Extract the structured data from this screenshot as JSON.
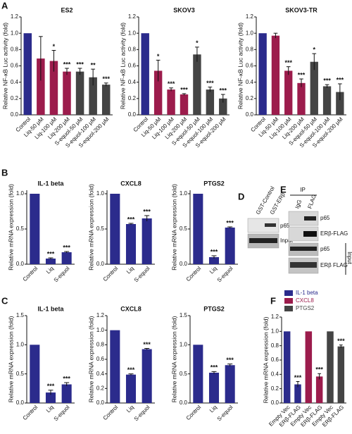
{
  "panel_letters": [
    "A",
    "B",
    "C",
    "D",
    "E",
    "F"
  ],
  "blots": {
    "D": {
      "columns": [
        "GST-Control",
        "GST-ERβ"
      ],
      "rows": [
        "p65",
        "Input"
      ]
    },
    "E": {
      "ip": "IP",
      "columns": [
        "IgG",
        "FLAG"
      ],
      "rows": [
        "p65",
        "ERβ-FLAG",
        "p65",
        "ERβ FLAG"
      ],
      "group": "Input"
    }
  },
  "chart_data": [
    {
      "type": "bar",
      "title": "ES2",
      "ylabel": "Relative NF-κB Luc activity (fold)",
      "categories": [
        "Control",
        "Liq-50 μM",
        "Liq-100 μM",
        "Liq-200 μM",
        "S-equol-50 μM",
        "S-equol-100 μM",
        "S-equol-200 μM"
      ],
      "values": [
        1.0,
        0.69,
        0.66,
        0.53,
        0.53,
        0.46,
        0.37
      ],
      "errors": [
        null,
        0.27,
        0.13,
        0.04,
        0.04,
        0.1,
        0.02
      ],
      "annotations": [
        null,
        null,
        "*",
        "***",
        "***",
        "**",
        "***"
      ],
      "colors": [
        "#2b2b8c",
        "#9c1c4c",
        "#9c1c4c",
        "#9c1c4c",
        "#444444",
        "#444444",
        "#444444"
      ],
      "ylim": [
        0,
        1.2
      ],
      "yticks": [
        {
          "value": 0,
          "label": "0.0"
        },
        0.2,
        0.4,
        0.6,
        0.8,
        {
          "value": 1,
          "label": "1.0"
        },
        1.2
      ]
    },
    {
      "type": "bar",
      "title": "SKOV3",
      "ylabel": "Relative NF-κB Luc activity (fold)",
      "categories": [
        "Control",
        "Liq-50 μM",
        "Liq-100 μM",
        "Liq-200 μM",
        "S-equol-50 μM",
        "S-equol-100 μM",
        "S-equol-200 μM"
      ],
      "values": [
        1.0,
        0.54,
        0.31,
        0.25,
        0.74,
        0.31,
        0.2
      ],
      "errors": [
        null,
        0.13,
        0.02,
        0.01,
        0.09,
        0.03,
        0.05
      ],
      "annotations": [
        null,
        "*",
        "***",
        "***",
        "*",
        "***",
        "***"
      ],
      "colors": [
        "#2b2b8c",
        "#9c1c4c",
        "#9c1c4c",
        "#9c1c4c",
        "#444444",
        "#444444",
        "#444444"
      ],
      "ylim": [
        0,
        1.2
      ],
      "yticks": [
        {
          "value": 0,
          "label": "0.0"
        },
        0.2,
        0.4,
        0.6,
        0.8,
        {
          "value": 1,
          "label": "1.0"
        },
        1.2
      ]
    },
    {
      "type": "bar",
      "title": "SKOV3-TR",
      "ylabel": "Relative NF-κB Luc activity (fold)",
      "categories": [
        "Control",
        "Liq-50 μM",
        "Liq-100 μM",
        "Liq-200 μM",
        "S-equol-50 μM",
        "S-equol-100 μM",
        "S-equol-200 μM"
      ],
      "values": [
        1.0,
        0.97,
        0.54,
        0.39,
        0.65,
        0.35,
        0.28
      ],
      "errors": [
        null,
        0.03,
        0.05,
        0.05,
        0.1,
        0.02,
        0.1
      ],
      "annotations": [
        null,
        null,
        "***",
        "***",
        "*",
        "***",
        "***"
      ],
      "colors": [
        "#2b2b8c",
        "#9c1c4c",
        "#9c1c4c",
        "#9c1c4c",
        "#444444",
        "#444444",
        "#444444"
      ],
      "ylim": [
        0,
        1.2
      ],
      "yticks": [
        {
          "value": 0,
          "label": "0.0"
        },
        0.2,
        0.4,
        0.6,
        0.8,
        {
          "value": 1,
          "label": "1.0"
        },
        1.2
      ]
    },
    {
      "type": "bar",
      "title": "IL-1 beta",
      "ylabel": "Relative mRNA expression  (fold)",
      "categories": [
        "Control",
        "Liq",
        "S-equol"
      ],
      "values": [
        1.0,
        0.08,
        0.17
      ],
      "errors": [
        null,
        0.01,
        0.01
      ],
      "annotations": [
        null,
        "***",
        "***"
      ],
      "colors": [
        "#2b2b8c",
        "#2b2b8c",
        "#2b2b8c"
      ],
      "ylim": [
        0,
        1.05
      ],
      "yticks": [
        {
          "value": 0,
          "label": "0.0"
        },
        0.5,
        {
          "value": 1,
          "label": "1.0"
        }
      ]
    },
    {
      "type": "bar",
      "title": "CXCL8",
      "ylabel": "Relative mRNA expression  (fold)",
      "categories": [
        "Control",
        "Liq",
        "S-equol"
      ],
      "values": [
        1.0,
        0.57,
        0.65
      ],
      "errors": [
        null,
        0.01,
        0.04
      ],
      "annotations": [
        null,
        "***",
        "***"
      ],
      "colors": [
        "#2b2b8c",
        "#2b2b8c",
        "#2b2b8c"
      ],
      "ylim": [
        0,
        1.05
      ],
      "yticks": [
        {
          "value": 0,
          "label": "0.0"
        },
        0.5,
        {
          "value": 1,
          "label": "1.0"
        }
      ]
    },
    {
      "type": "bar",
      "title": "PTGS2",
      "ylabel": "Relative mRNA expression  (fold)",
      "categories": [
        "Control",
        "Liq",
        "S-equol"
      ],
      "values": [
        1.0,
        0.1,
        0.52
      ],
      "errors": [
        null,
        0.02,
        0.01
      ],
      "annotations": [
        null,
        "***",
        "***"
      ],
      "colors": [
        "#2b2b8c",
        "#2b2b8c",
        "#2b2b8c"
      ],
      "ylim": [
        0,
        1.05
      ],
      "yticks": [
        {
          "value": 0,
          "label": "0.0"
        },
        0.5,
        {
          "value": 1,
          "label": "1.0"
        }
      ]
    },
    {
      "type": "bar",
      "title": "IL-1 beta",
      "ylabel": "Relative mRNA expression  (fold)",
      "categories": [
        "Control",
        "Liq",
        "S-equol"
      ],
      "values": [
        1.0,
        0.18,
        0.32
      ],
      "errors": [
        null,
        0.04,
        0.03
      ],
      "annotations": [
        null,
        "***",
        "***"
      ],
      "colors": [
        "#2b2b8c",
        "#2b2b8c",
        "#2b2b8c"
      ],
      "ylim": [
        0,
        1.5
      ],
      "yticks": [
        {
          "value": 0,
          "label": "0.0"
        },
        0.5,
        {
          "value": 1,
          "label": "1.0"
        },
        1.5
      ]
    },
    {
      "type": "bar",
      "title": "CXCL8",
      "ylabel": "Relative mRNA expression  (fold)",
      "categories": [
        "Control",
        "Liq",
        "S-equol"
      ],
      "values": [
        1.0,
        0.39,
        0.74
      ],
      "errors": [
        null,
        0.01,
        0.01
      ],
      "annotations": [
        null,
        "***",
        "***"
      ],
      "colors": [
        "#2b2b8c",
        "#2b2b8c",
        "#2b2b8c"
      ],
      "ylim": [
        0,
        1.2
      ],
      "yticks": [
        {
          "value": 0,
          "label": "0.0"
        },
        0.2,
        0.4,
        0.6,
        0.8,
        {
          "value": 1,
          "label": "1.0"
        },
        1.2
      ]
    },
    {
      "type": "bar",
      "title": "PTGS2",
      "ylabel": "Relative mRNA expression  (fold)",
      "categories": [
        "Control",
        "Liq",
        "S-equol"
      ],
      "values": [
        1.0,
        0.52,
        0.65
      ],
      "errors": [
        null,
        0.02,
        0.02
      ],
      "annotations": [
        null,
        "***",
        "***"
      ],
      "colors": [
        "#2b2b8c",
        "#2b2b8c",
        "#2b2b8c"
      ],
      "ylim": [
        0,
        1.5
      ],
      "yticks": [
        {
          "value": 0,
          "label": "0.0"
        },
        0.5,
        {
          "value": 1,
          "label": "1.0"
        },
        1.5
      ]
    },
    {
      "type": "bar",
      "ylabel": "Relative mRNA expression  (fold)",
      "categories": [
        "Empty Vec",
        "ERβ-FLAG"
      ],
      "series": [
        {
          "name": "IL-1 beta",
          "color": "#2b2b8c",
          "values": [
            1.0,
            0.26
          ],
          "errors": [
            null,
            0.04
          ],
          "annotations": [
            null,
            "***"
          ]
        },
        {
          "name": "CXCL8",
          "color": "#9c1c4c",
          "values": [
            1.0,
            0.37
          ],
          "errors": [
            null,
            0.04
          ],
          "annotations": [
            null,
            "***"
          ]
        },
        {
          "name": "PTGS2",
          "color": "#444444",
          "values": [
            1.0,
            0.79
          ],
          "errors": [
            null,
            0.02
          ],
          "annotations": [
            null,
            "***"
          ]
        }
      ],
      "ylim": [
        0,
        1.2
      ],
      "yticks": [
        {
          "value": 0,
          "label": "0.0"
        },
        0.2,
        0.4,
        0.6,
        0.8,
        {
          "value": 1,
          "label": "1.0"
        },
        1.2
      ]
    }
  ]
}
